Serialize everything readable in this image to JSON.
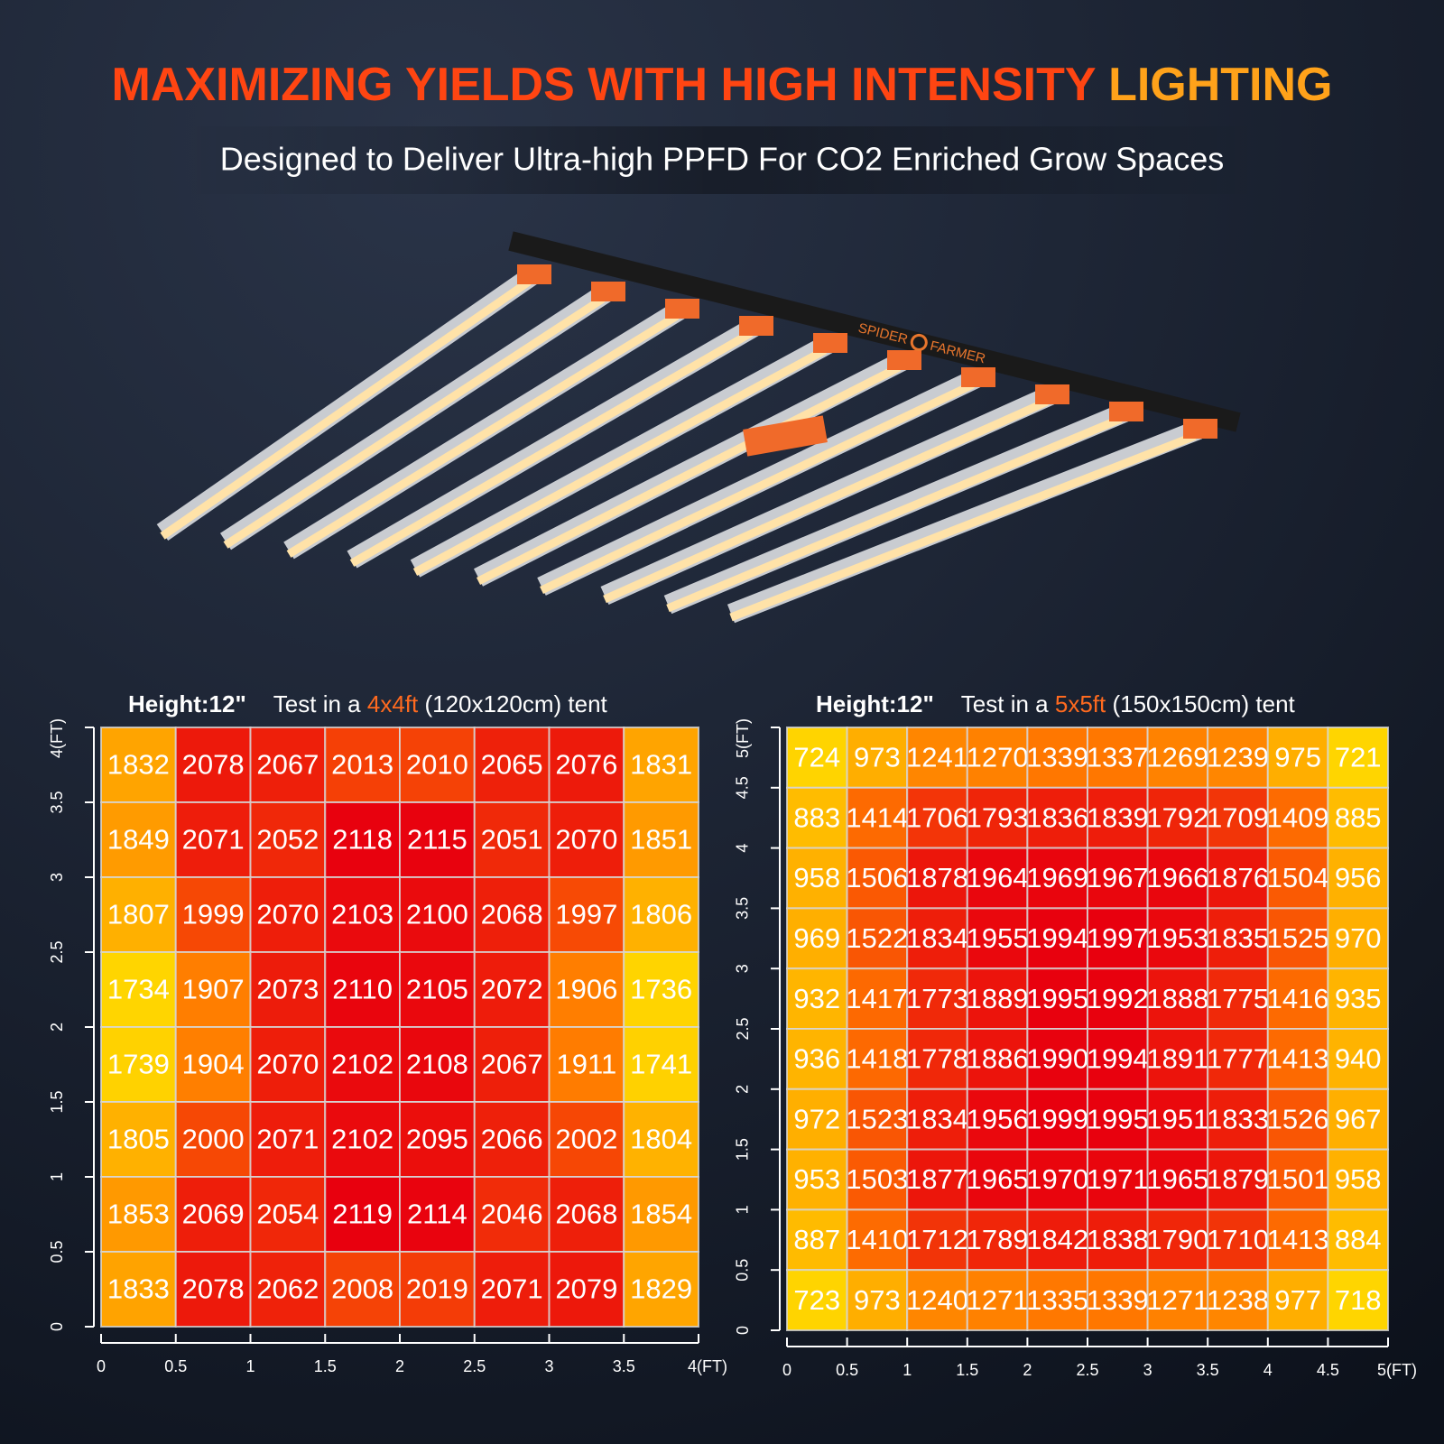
{
  "title": {
    "main": "MAXIMIZING YIELDS WITH HIGH INTENSITY ",
    "accent": "LIGHTING"
  },
  "subtitle": "Designed to Deliver Ultra-high PPFD For CO2 Enriched Grow Spaces",
  "product": {
    "brand_left": "SPIDER",
    "brand_right": "FARMER"
  },
  "chart_data": [
    {
      "type": "heatmap",
      "header": {
        "height": "Height:12\"",
        "prefix": "Test in a ",
        "size": "4x4ft",
        "suffix": " (120x120cm) tent"
      },
      "values": [
        [
          1832,
          2078,
          2067,
          2013,
          2010,
          2065,
          2076,
          1831
        ],
        [
          1849,
          2071,
          2052,
          2118,
          2115,
          2051,
          2070,
          1851
        ],
        [
          1807,
          1999,
          2070,
          2103,
          2100,
          2068,
          1997,
          1806
        ],
        [
          1734,
          1907,
          2073,
          2110,
          2105,
          2072,
          1906,
          1736
        ],
        [
          1739,
          1904,
          2070,
          2102,
          2108,
          2067,
          1911,
          1741
        ],
        [
          1805,
          2000,
          2071,
          2102,
          2095,
          2066,
          2002,
          1804
        ],
        [
          1853,
          2069,
          2054,
          2119,
          2114,
          2046,
          2068,
          1854
        ],
        [
          1833,
          2078,
          2062,
          2008,
          2019,
          2071,
          2079,
          1829
        ]
      ],
      "colors": [
        "#ffd500",
        "#ff7400",
        "#e8000e"
      ],
      "xlim": [
        0,
        4
      ],
      "xticks": [
        0,
        0.5,
        1,
        1.5,
        2,
        2.5,
        3,
        3.5,
        {
          "value": 4,
          "label": "4(FT)"
        }
      ],
      "ylim": [
        0,
        4
      ],
      "yticks": [
        0,
        0.5,
        1,
        1.5,
        2,
        2.5,
        3,
        3.5,
        {
          "value": 4,
          "label": "4(FT)"
        }
      ]
    },
    {
      "type": "heatmap",
      "header": {
        "height": "Height:12\"",
        "prefix": "Test in a ",
        "size": "5x5ft",
        "suffix": " (150x150cm) tent"
      },
      "values": [
        [
          724,
          973,
          1241,
          1270,
          1339,
          1337,
          1269,
          1239,
          975,
          721
        ],
        [
          883,
          1414,
          1706,
          1793,
          1836,
          1839,
          1792,
          1709,
          1409,
          885
        ],
        [
          958,
          1506,
          1878,
          1964,
          1969,
          1967,
          1966,
          1876,
          1504,
          956
        ],
        [
          969,
          1522,
          1834,
          1955,
          1994,
          1997,
          1953,
          1835,
          1525,
          970
        ],
        [
          932,
          1417,
          1773,
          1889,
          1995,
          1992,
          1888,
          1775,
          1416,
          935
        ],
        [
          936,
          1418,
          1778,
          1886,
          1990,
          1994,
          1891,
          1777,
          1413,
          940
        ],
        [
          972,
          1523,
          1834,
          1956,
          1999,
          1995,
          1951,
          1833,
          1526,
          967
        ],
        [
          953,
          1503,
          1877,
          1965,
          1970,
          1971,
          1965,
          1879,
          1501,
          958
        ],
        [
          887,
          1410,
          1712,
          1789,
          1842,
          1838,
          1790,
          1710,
          1413,
          884
        ],
        [
          723,
          973,
          1240,
          1271,
          1335,
          1339,
          1271,
          1238,
          977,
          718
        ]
      ],
      "colors": [
        "#ffd500",
        "#ff7400",
        "#e8000e"
      ],
      "xlim": [
        0,
        5
      ],
      "xticks": [
        0,
        0.5,
        1,
        1.5,
        2,
        2.5,
        3,
        3.5,
        4,
        4.5,
        {
          "value": 5,
          "label": "5(FT)"
        }
      ],
      "ylim": [
        0,
        5
      ],
      "yticks": [
        0,
        0.5,
        1,
        1.5,
        2,
        2.5,
        3,
        3.5,
        4,
        4.5,
        {
          "value": 5,
          "label": "5(FT)"
        }
      ]
    }
  ]
}
